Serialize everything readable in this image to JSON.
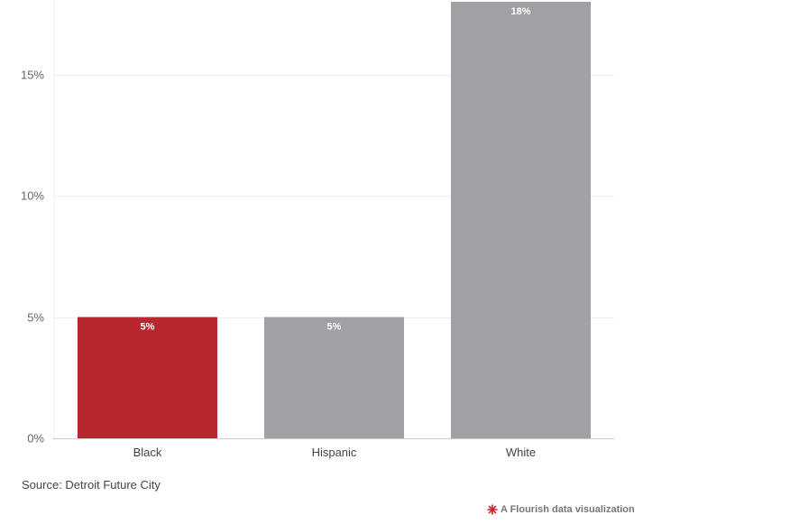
{
  "chart_data": {
    "type": "bar",
    "categories": [
      "Black",
      "Hispanic",
      "White"
    ],
    "values": [
      5,
      5,
      18
    ],
    "data_labels": [
      "5%",
      "5%",
      "18%"
    ],
    "colors": [
      "#b9272e",
      "#a0a1a4",
      "#a0a1a4"
    ],
    "ylim": [
      0,
      18
    ],
    "yticks": [
      0,
      5,
      10,
      15
    ],
    "ytick_labels": [
      "0%",
      "5%",
      "10%",
      "15%"
    ],
    "grid": true,
    "gridline_color": "#eeeeee",
    "axis_color": "#cccccc"
  },
  "source": "Source: Detroit Future City",
  "credit": {
    "text": "A Flourish data visualization",
    "icon": "flourish-logo-icon",
    "icon_color": "#d1212a"
  }
}
